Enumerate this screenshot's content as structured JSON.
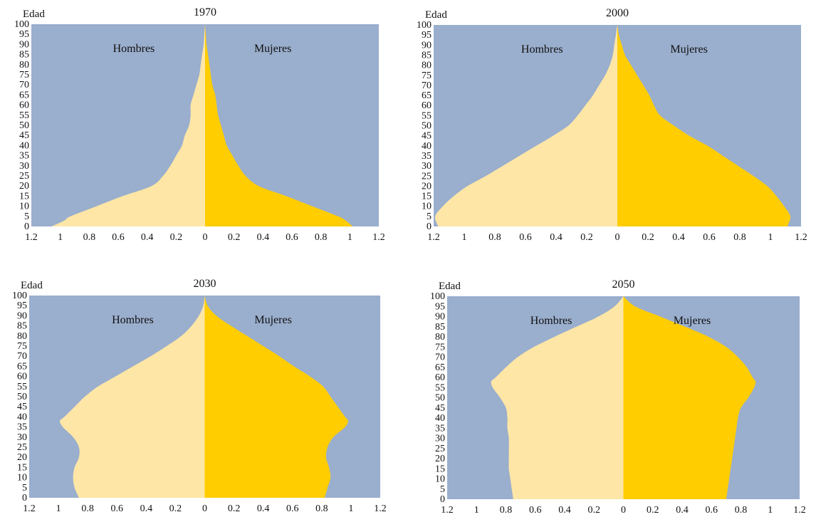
{
  "colors": {
    "background": "#9aaecd",
    "hombres": "#fde6a6",
    "mujeres": "#ffcd00"
  },
  "chart_data": [
    {
      "type": "area",
      "title": "1970",
      "ylabel": "Edad",
      "xlim": [
        -1.2,
        1.2
      ],
      "ylim": [
        0,
        100
      ],
      "xticks": [
        "1.2",
        "1",
        "0.8",
        "0.6",
        "0.4",
        "0.2",
        "0",
        "0.2",
        "0.4",
        "0.6",
        "0.8",
        "1",
        "1.2"
      ],
      "yticks": [
        "0",
        "5",
        "10",
        "15",
        "20",
        "25",
        "30",
        "35",
        "40",
        "45",
        "50",
        "55",
        "60",
        "65",
        "70",
        "75",
        "80",
        "85",
        "90",
        "95",
        "100"
      ],
      "group_labels": [
        "Hombres",
        "Mujeres"
      ],
      "age": [
        0,
        3,
        5,
        10,
        15,
        20,
        25,
        30,
        35,
        40,
        45,
        50,
        55,
        60,
        65,
        70,
        75,
        80,
        85,
        90,
        95,
        100
      ],
      "series": [
        {
          "name": "Hombres",
          "values": [
            1.06,
            0.97,
            0.93,
            0.75,
            0.57,
            0.37,
            0.29,
            0.24,
            0.2,
            0.16,
            0.14,
            0.11,
            0.1,
            0.1,
            0.08,
            0.06,
            0.04,
            0.03,
            0.02,
            0.01,
            0.005,
            0.0
          ]
        },
        {
          "name": "Mujeres",
          "values": [
            1.02,
            0.97,
            0.92,
            0.74,
            0.56,
            0.37,
            0.28,
            0.23,
            0.19,
            0.15,
            0.13,
            0.11,
            0.09,
            0.08,
            0.07,
            0.05,
            0.04,
            0.03,
            0.02,
            0.01,
            0.005,
            0.0
          ]
        }
      ]
    },
    {
      "type": "area",
      "title": "2000",
      "ylabel": "Edad",
      "xlim": [
        -1.2,
        1.2
      ],
      "ylim": [
        0,
        100
      ],
      "xticks": [
        "1.2",
        "1",
        "0.8",
        "0.6",
        "0.4",
        "0.2",
        "0",
        "0.2",
        "0.4",
        "0.6",
        "0.8",
        "1",
        "1.2"
      ],
      "yticks": [
        "0",
        "5",
        "10",
        "15",
        "20",
        "25",
        "30",
        "35",
        "40",
        "45",
        "50",
        "55",
        "60",
        "65",
        "70",
        "75",
        "80",
        "85",
        "90",
        "95",
        "100"
      ],
      "group_labels": [
        "Hombres",
        "Mujeres"
      ],
      "age": [
        0,
        5,
        10,
        15,
        20,
        25,
        30,
        35,
        40,
        45,
        50,
        55,
        60,
        65,
        70,
        75,
        80,
        85,
        90,
        95,
        100
      ],
      "series": [
        {
          "name": "Hombres",
          "values": [
            1.17,
            1.19,
            1.14,
            1.07,
            0.98,
            0.86,
            0.75,
            0.64,
            0.53,
            0.42,
            0.32,
            0.26,
            0.21,
            0.16,
            0.12,
            0.08,
            0.05,
            0.03,
            0.02,
            0.01,
            0.0
          ]
        },
        {
          "name": "Mujeres",
          "values": [
            1.11,
            1.13,
            1.09,
            1.04,
            0.98,
            0.89,
            0.79,
            0.69,
            0.59,
            0.47,
            0.37,
            0.28,
            0.24,
            0.21,
            0.17,
            0.13,
            0.09,
            0.05,
            0.03,
            0.01,
            0.0
          ]
        }
      ]
    },
    {
      "type": "area",
      "title": "2030",
      "ylabel": "Edad",
      "xlim": [
        -1.2,
        1.2
      ],
      "ylim": [
        0,
        100
      ],
      "xticks": [
        "1.2",
        "1",
        "0.8",
        "0.6",
        "0.4",
        "0.2",
        "0",
        "0.2",
        "0.4",
        "0.6",
        "0.8",
        "1",
        "1.2"
      ],
      "yticks": [
        "0",
        "5",
        "10",
        "15",
        "20",
        "25",
        "30",
        "35",
        "40",
        "45",
        "50",
        "55",
        "60",
        "65",
        "70",
        "75",
        "80",
        "85",
        "90",
        "95",
        "100"
      ],
      "group_labels": [
        "Hombres",
        "Mujeres"
      ],
      "age": [
        0,
        5,
        10,
        15,
        20,
        25,
        30,
        35,
        38,
        40,
        45,
        50,
        55,
        60,
        65,
        70,
        75,
        80,
        85,
        90,
        95,
        100
      ],
      "series": [
        {
          "name": "Hombres",
          "values": [
            0.86,
            0.89,
            0.9,
            0.89,
            0.86,
            0.86,
            0.9,
            0.97,
            0.99,
            0.96,
            0.89,
            0.82,
            0.73,
            0.61,
            0.49,
            0.37,
            0.26,
            0.16,
            0.09,
            0.04,
            0.01,
            0.0
          ]
        },
        {
          "name": "Mujeres",
          "values": [
            0.82,
            0.84,
            0.86,
            0.85,
            0.83,
            0.84,
            0.88,
            0.96,
            0.98,
            0.96,
            0.91,
            0.86,
            0.81,
            0.72,
            0.61,
            0.51,
            0.4,
            0.29,
            0.18,
            0.08,
            0.02,
            0.0
          ]
        }
      ]
    },
    {
      "type": "area",
      "title": "2050",
      "ylabel": "Edad",
      "xlim": [
        -1.2,
        1.2
      ],
      "ylim": [
        0,
        100
      ],
      "xticks": [
        "1.2",
        "1",
        "0.8",
        "0.6",
        "0.4",
        "0.2",
        "0",
        "0.2",
        "0.4",
        "0.6",
        "0.8",
        "1",
        "1.2"
      ],
      "yticks": [
        "0",
        "5",
        "10",
        "15",
        "20",
        "25",
        "30",
        "35",
        "40",
        "45",
        "50",
        "55",
        "60",
        "65",
        "70",
        "75",
        "80",
        "85",
        "90",
        "95",
        "100"
      ],
      "group_labels": [
        "Hombres",
        "Mujeres"
      ],
      "age": [
        0,
        5,
        10,
        15,
        20,
        25,
        30,
        35,
        40,
        45,
        50,
        55,
        58,
        60,
        65,
        70,
        75,
        80,
        85,
        90,
        95,
        100
      ],
      "series": [
        {
          "name": "Hombres",
          "values": [
            0.75,
            0.76,
            0.77,
            0.78,
            0.78,
            0.78,
            0.78,
            0.79,
            0.79,
            0.8,
            0.84,
            0.89,
            0.9,
            0.87,
            0.8,
            0.72,
            0.61,
            0.47,
            0.32,
            0.17,
            0.06,
            0.0
          ]
        },
        {
          "name": "Mujeres",
          "values": [
            0.7,
            0.71,
            0.72,
            0.73,
            0.74,
            0.75,
            0.76,
            0.77,
            0.78,
            0.8,
            0.85,
            0.89,
            0.9,
            0.88,
            0.84,
            0.78,
            0.7,
            0.58,
            0.42,
            0.25,
            0.08,
            0.0
          ]
        }
      ]
    }
  ]
}
